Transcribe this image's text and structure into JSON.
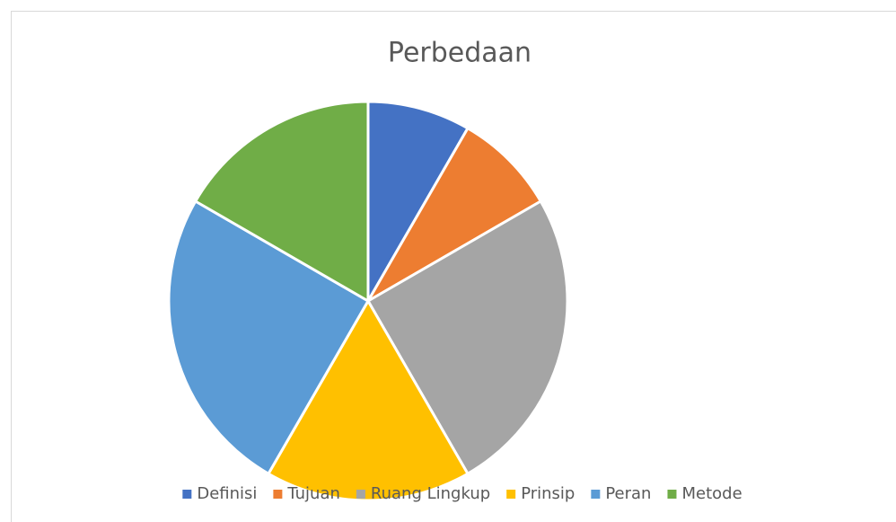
{
  "chart_data": {
    "type": "pie",
    "title": "Perbedaan",
    "categories": [
      "Definisi",
      "Tujuan",
      "Ruang Lingkup",
      "Prinsip",
      "Peran",
      "Metode"
    ],
    "values": [
      1,
      1,
      3,
      2,
      3,
      2
    ],
    "colors": [
      "#4472c4",
      "#ed7d31",
      "#a5a5a5",
      "#ffc000",
      "#5b9bd5",
      "#70ad47"
    ],
    "legend": "bottom"
  }
}
